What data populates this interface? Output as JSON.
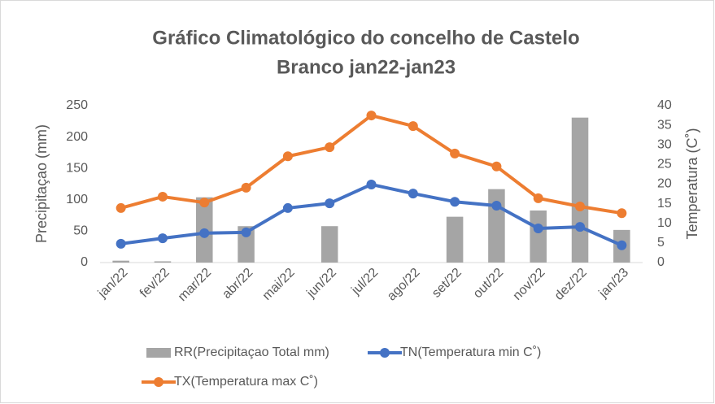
{
  "chart_data": {
    "type": "combo",
    "title": [
      "Gráfico Climatológico do concelho de Castelo",
      "Branco jan22-jan23"
    ],
    "y_label": "Precipitaçao (mm)",
    "y2_label": "Temperatura (C˚)",
    "categories": [
      "jan/22",
      "fev/22",
      "mar/22",
      "abr/22",
      "mai/22",
      "jun/22",
      "jul/22",
      "ago/22",
      "set/22",
      "out/22",
      "nov/22",
      "dez/22",
      "jan/23"
    ],
    "series": [
      {
        "name": "RR(Precipitaçao Total mm)",
        "type": "bar",
        "axis": "y",
        "color": "#a5a5a5",
        "values": [
          3,
          2,
          104,
          58,
          0,
          58,
          0,
          0,
          73,
          117,
          83,
          231,
          52
        ]
      },
      {
        "name": "TN(Temperatura min C˚)",
        "type": "line",
        "axis": "y2",
        "color": "#4472c4",
        "values": [
          4.8,
          6.2,
          7.5,
          7.7,
          13.9,
          15.1,
          19.9,
          17.6,
          15.5,
          14.5,
          8.7,
          9.1,
          4.4
        ]
      },
      {
        "name": "TX(Temperatura max C˚)",
        "type": "line",
        "axis": "y2",
        "color": "#ed7d31",
        "values": [
          13.9,
          16.8,
          15.3,
          19.1,
          27.1,
          29.4,
          37.5,
          34.8,
          27.8,
          24.5,
          16.4,
          14.3,
          12.6
        ]
      }
    ],
    "ylim": [
      0,
      250
    ],
    "yticks": [
      0,
      50,
      100,
      150,
      200,
      250
    ],
    "y2lim": [
      0,
      40
    ],
    "y2ticks": [
      0,
      5,
      10,
      15,
      20,
      25,
      30,
      35,
      40
    ],
    "grid": false
  }
}
